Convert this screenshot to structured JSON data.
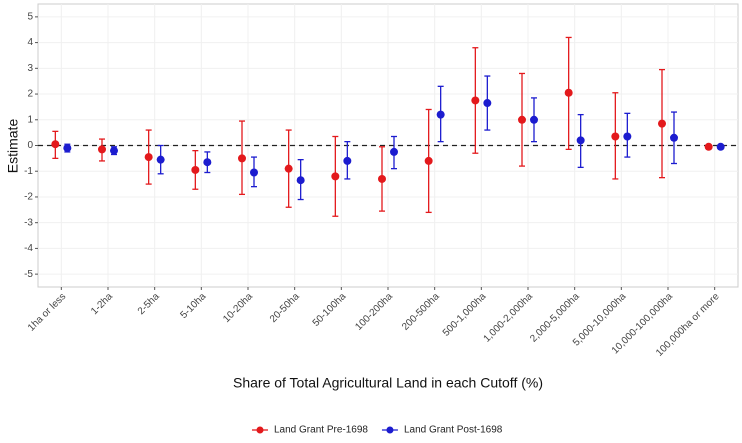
{
  "chart_data": {
    "type": "errorbar",
    "ylabel": "Estimate",
    "xlabel": "Share of Total Agricultural Land in each Cutoff (%)",
    "categories": [
      "1ha or less",
      "1-2ha",
      "2-5ha",
      "5-10ha",
      "10-20ha",
      "20-50ha",
      "50-100ha",
      "100-200ha",
      "200-500ha",
      "500-1,000ha",
      "1,000-2,000ha",
      "2,000-5,000ha",
      "5,000-10,000ha",
      "10,000-100,000ha",
      "100,000ha or more"
    ],
    "series": [
      {
        "name": "Land Grant Pre-1698",
        "color": "#e3191c",
        "values": [
          0.05,
          -0.15,
          -0.45,
          -0.95,
          -0.5,
          -0.9,
          -1.2,
          -1.3,
          -0.6,
          1.75,
          1.0,
          2.05,
          0.35,
          0.85,
          -0.05
        ],
        "lower": [
          -0.5,
          -0.6,
          -1.5,
          -1.7,
          -1.9,
          -2.4,
          -2.75,
          -2.55,
          -2.6,
          -0.3,
          -0.8,
          -0.15,
          -1.3,
          -1.25,
          -0.1
        ],
        "upper": [
          0.55,
          0.25,
          0.6,
          -0.2,
          0.95,
          0.6,
          0.35,
          -0.05,
          1.4,
          3.8,
          2.8,
          4.2,
          2.05,
          2.95,
          0.0
        ]
      },
      {
        "name": "Land Grant Post-1698",
        "color": "#1c1ccf",
        "values": [
          -0.1,
          -0.2,
          -0.55,
          -0.65,
          -1.05,
          -1.35,
          -0.6,
          -0.25,
          1.2,
          1.65,
          1.0,
          0.2,
          0.35,
          0.3,
          -0.05
        ],
        "lower": [
          -0.25,
          -0.35,
          -1.1,
          -1.05,
          -1.6,
          -2.1,
          -1.3,
          -0.9,
          0.15,
          0.6,
          0.15,
          -0.85,
          -0.45,
          -0.7,
          -0.1
        ],
        "upper": [
          0.05,
          -0.05,
          0.0,
          -0.25,
          -0.45,
          -0.55,
          0.15,
          0.35,
          2.3,
          2.7,
          1.85,
          1.2,
          1.25,
          1.3,
          0.0
        ]
      }
    ],
    "ylim": [
      -5.5,
      5.5
    ],
    "yticks": [
      -5,
      -4,
      -3,
      -2,
      -1,
      0,
      1,
      2,
      3,
      4,
      5
    ],
    "reference_line": 0,
    "grid": true,
    "legend": "bottom"
  }
}
